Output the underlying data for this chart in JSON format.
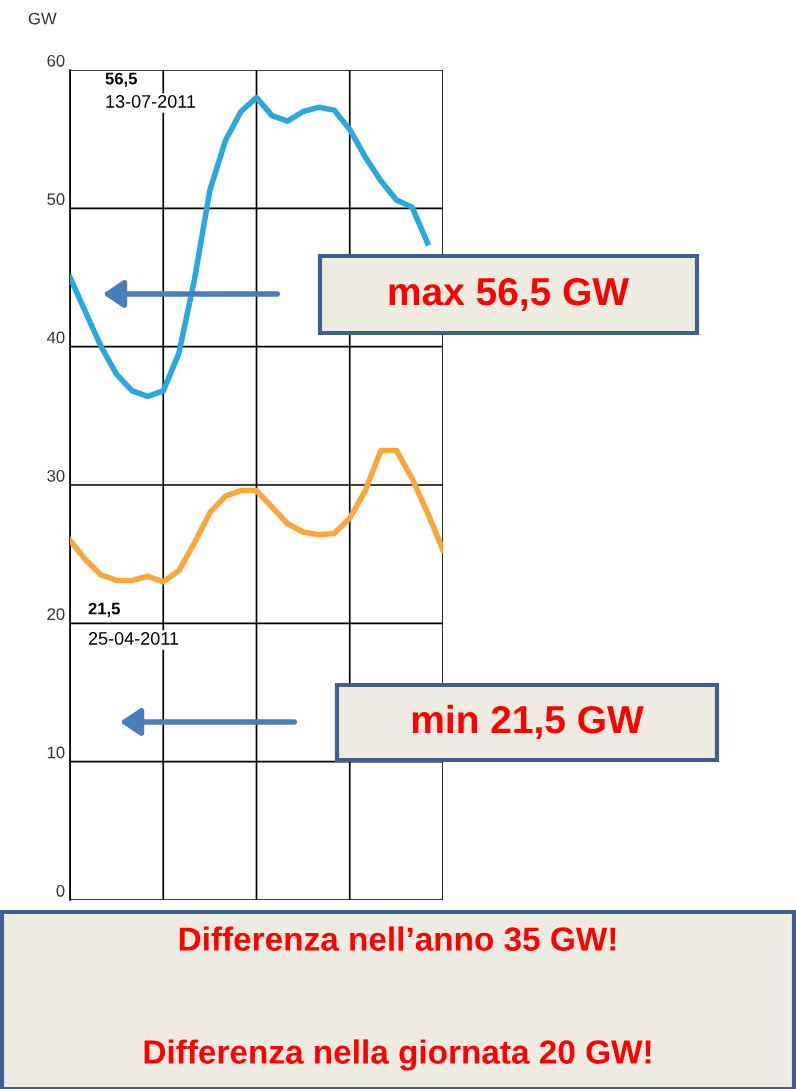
{
  "chart_data": {
    "type": "line",
    "ylabel": "GW",
    "categories": [
      null,
      null,
      null,
      null,
      null,
      null,
      null,
      null,
      null,
      null,
      null,
      null,
      null,
      null,
      null,
      null,
      null,
      null,
      null,
      null,
      null,
      null,
      null,
      null,
      null
    ],
    "series": [
      {
        "color": "#29a8e0",
        "values": [
          45.0,
          42.5,
          40.0,
          38.0,
          36.8,
          36.4,
          36.8,
          39.5,
          44.8,
          51.3,
          54.9,
          57.0,
          58.0,
          56.7,
          56.3,
          57.0,
          57.3,
          57.1,
          55.7,
          53.7,
          52.0,
          50.6,
          50.1,
          47.5,
          null
        ]
      },
      {
        "color": "#f9a63a",
        "values": [
          26.0,
          24.6,
          23.5,
          23.1,
          23.1,
          23.4,
          23.0,
          23.8,
          25.8,
          28.0,
          29.2,
          29.6,
          29.6,
          28.4,
          27.2,
          26.6,
          26.4,
          26.5,
          27.6,
          29.6,
          32.5,
          32.5,
          30.5,
          28.0,
          25.3
        ]
      }
    ],
    "ylim": [
      0,
      60
    ],
    "yticks": [
      0,
      10,
      20,
      30,
      40,
      50,
      60
    ],
    "grid": true,
    "marker": "none",
    "line_style": "solid",
    "annotations": [
      "56,5",
      "13-07-2011",
      "21,5",
      "25-04-2011",
      "max 56,5 GW",
      "min 21,5 GW",
      "Differenza nell’anno 35 GW!",
      "Differenza nella giornata 20 GW!"
    ]
  }
}
